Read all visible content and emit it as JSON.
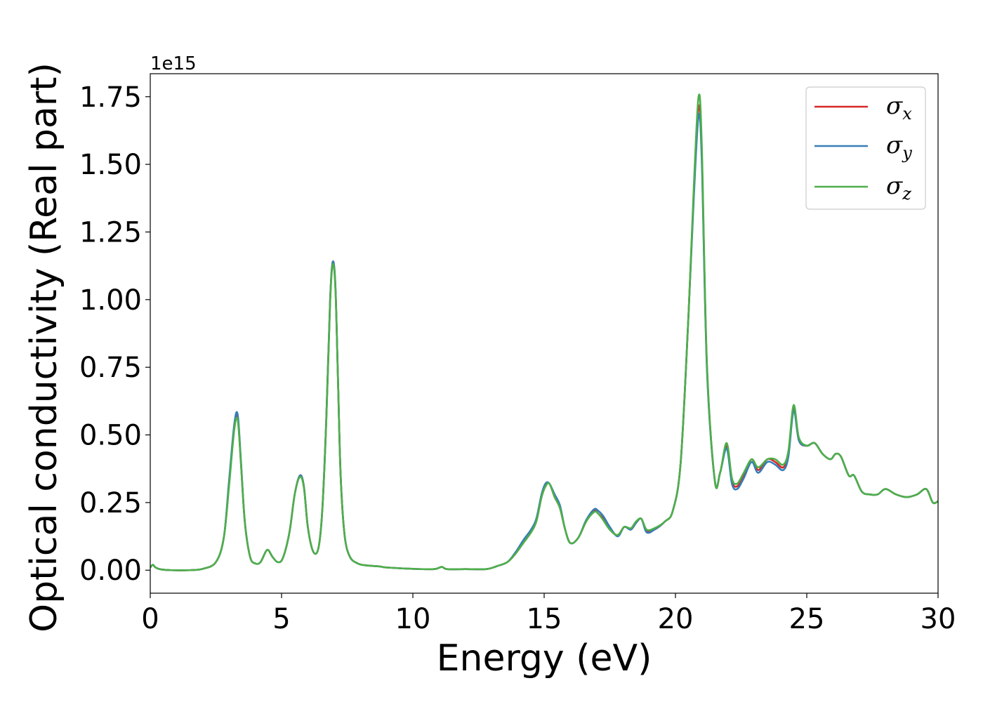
{
  "chart_data": {
    "type": "line",
    "title": "",
    "xlabel": "Energy (eV)",
    "ylabel": "Optical conductivity (Real part)",
    "y_offset_text": "1e15",
    "xlim": [
      0,
      30
    ],
    "ylim": [
      -0.085,
      1.835
    ],
    "x_ticks": [
      0,
      5,
      10,
      15,
      20,
      25,
      30
    ],
    "x_tick_labels": [
      "0",
      "5",
      "10",
      "15",
      "20",
      "25",
      "30"
    ],
    "y_ticks": [
      0.0,
      0.25,
      0.5,
      0.75,
      1.0,
      1.25,
      1.5,
      1.75
    ],
    "y_tick_labels": [
      "0.00",
      "0.25",
      "0.50",
      "0.75",
      "1.00",
      "1.25",
      "1.50",
      "1.75"
    ],
    "grid": false,
    "legend_position": "top-right",
    "series": [
      {
        "name": "σx",
        "base": "σ",
        "sub": "x",
        "color": "#d62728",
        "x": [
          0,
          0.1,
          0.2,
          0.4,
          0.8,
          1.5,
          2.0,
          2.5,
          2.8,
          3.0,
          3.2,
          3.33,
          3.45,
          3.6,
          3.8,
          4.0,
          4.2,
          4.45,
          4.65,
          4.85,
          5.05,
          5.3,
          5.5,
          5.7,
          5.85,
          6.0,
          6.2,
          6.4,
          6.55,
          6.7,
          6.85,
          6.95,
          7.05,
          7.15,
          7.25,
          7.4,
          7.6,
          7.9,
          8.2,
          8.6,
          8.8,
          9.0,
          10.0,
          10.8,
          11.1,
          11.3,
          12.0,
          12.8,
          13.2,
          13.6,
          13.9,
          14.2,
          14.5,
          14.7,
          14.9,
          15.05,
          15.2,
          15.4,
          15.6,
          15.8,
          16.0,
          16.3,
          16.6,
          16.9,
          17.05,
          17.25,
          17.5,
          17.8,
          18.05,
          18.3,
          18.5,
          18.7,
          18.9,
          19.2,
          19.6,
          19.9,
          20.2,
          20.5,
          20.7,
          20.88,
          21.0,
          21.2,
          21.5,
          21.7,
          21.95,
          22.15,
          22.35,
          22.6,
          22.9,
          23.15,
          23.5,
          23.8,
          24.1,
          24.3,
          24.5,
          24.7,
          25.0,
          25.3,
          25.6,
          25.9,
          26.1,
          26.3,
          26.6,
          26.8,
          27.1,
          27.4,
          27.7,
          28.0,
          28.4,
          28.8,
          29.2,
          29.55,
          29.8,
          30.0
        ],
        "y": [
          0.01,
          0.02,
          0.01,
          0.003,
          0.0,
          0.0,
          0.005,
          0.03,
          0.12,
          0.32,
          0.53,
          0.565,
          0.4,
          0.18,
          0.05,
          0.025,
          0.03,
          0.075,
          0.05,
          0.03,
          0.045,
          0.14,
          0.28,
          0.35,
          0.31,
          0.16,
          0.07,
          0.08,
          0.22,
          0.55,
          1.0,
          1.14,
          1.05,
          0.7,
          0.35,
          0.13,
          0.05,
          0.025,
          0.018,
          0.015,
          0.013,
          0.01,
          0.005,
          0.004,
          0.012,
          0.004,
          0.004,
          0.004,
          0.015,
          0.03,
          0.06,
          0.1,
          0.14,
          0.18,
          0.27,
          0.31,
          0.32,
          0.27,
          0.23,
          0.15,
          0.1,
          0.12,
          0.18,
          0.22,
          0.21,
          0.19,
          0.15,
          0.13,
          0.16,
          0.15,
          0.175,
          0.19,
          0.145,
          0.15,
          0.18,
          0.22,
          0.4,
          0.95,
          1.4,
          1.71,
          1.55,
          0.75,
          0.33,
          0.36,
          0.46,
          0.33,
          0.31,
          0.35,
          0.41,
          0.37,
          0.41,
          0.4,
          0.38,
          0.43,
          0.6,
          0.48,
          0.46,
          0.47,
          0.43,
          0.41,
          0.43,
          0.42,
          0.35,
          0.35,
          0.29,
          0.28,
          0.28,
          0.3,
          0.28,
          0.27,
          0.28,
          0.3,
          0.25,
          0.255
        ]
      },
      {
        "name": "σy",
        "base": "σ",
        "sub": "y",
        "color": "#377eb8",
        "x": [
          0,
          0.1,
          0.2,
          0.4,
          0.8,
          1.5,
          2.0,
          2.5,
          2.8,
          3.0,
          3.2,
          3.33,
          3.45,
          3.6,
          3.8,
          4.0,
          4.2,
          4.45,
          4.65,
          4.85,
          5.05,
          5.3,
          5.5,
          5.7,
          5.85,
          6.0,
          6.2,
          6.4,
          6.55,
          6.7,
          6.85,
          6.95,
          7.05,
          7.15,
          7.25,
          7.4,
          7.6,
          7.9,
          8.2,
          8.6,
          8.8,
          9.0,
          10.0,
          10.8,
          11.1,
          11.3,
          12.0,
          12.8,
          13.2,
          13.6,
          13.9,
          14.2,
          14.5,
          14.7,
          14.9,
          15.05,
          15.2,
          15.4,
          15.6,
          15.8,
          16.0,
          16.3,
          16.6,
          16.9,
          17.05,
          17.25,
          17.5,
          17.8,
          18.05,
          18.3,
          18.5,
          18.7,
          18.9,
          19.2,
          19.6,
          19.9,
          20.2,
          20.5,
          20.7,
          20.88,
          21.0,
          21.2,
          21.5,
          21.7,
          21.95,
          22.15,
          22.35,
          22.6,
          22.9,
          23.15,
          23.5,
          23.8,
          24.1,
          24.3,
          24.5,
          24.7,
          25.0,
          25.3,
          25.6,
          25.9,
          26.1,
          26.3,
          26.6,
          26.8,
          27.1,
          27.4,
          27.7,
          28.0,
          28.4,
          28.8,
          29.2,
          29.55,
          29.8,
          30.0
        ],
        "y": [
          0.01,
          0.02,
          0.01,
          0.003,
          0.0,
          0.0,
          0.005,
          0.03,
          0.12,
          0.33,
          0.54,
          0.575,
          0.41,
          0.18,
          0.05,
          0.025,
          0.03,
          0.075,
          0.05,
          0.03,
          0.045,
          0.14,
          0.28,
          0.35,
          0.31,
          0.16,
          0.07,
          0.08,
          0.22,
          0.55,
          1.0,
          1.14,
          1.05,
          0.7,
          0.35,
          0.13,
          0.05,
          0.025,
          0.018,
          0.015,
          0.013,
          0.01,
          0.005,
          0.004,
          0.012,
          0.004,
          0.004,
          0.004,
          0.015,
          0.03,
          0.065,
          0.11,
          0.15,
          0.19,
          0.28,
          0.32,
          0.32,
          0.28,
          0.24,
          0.15,
          0.1,
          0.12,
          0.185,
          0.225,
          0.22,
          0.2,
          0.16,
          0.125,
          0.16,
          0.15,
          0.175,
          0.19,
          0.14,
          0.15,
          0.18,
          0.22,
          0.4,
          0.95,
          1.38,
          1.68,
          1.52,
          0.74,
          0.33,
          0.36,
          0.45,
          0.32,
          0.3,
          0.34,
          0.4,
          0.36,
          0.4,
          0.39,
          0.37,
          0.42,
          0.59,
          0.48,
          0.46,
          0.47,
          0.43,
          0.41,
          0.43,
          0.42,
          0.35,
          0.35,
          0.29,
          0.28,
          0.28,
          0.3,
          0.28,
          0.27,
          0.28,
          0.3,
          0.25,
          0.255
        ]
      },
      {
        "name": "σz",
        "base": "σ",
        "sub": "z",
        "color": "#4daf4a",
        "x": [
          0,
          0.1,
          0.2,
          0.4,
          0.8,
          1.5,
          2.0,
          2.5,
          2.8,
          3.0,
          3.2,
          3.33,
          3.45,
          3.6,
          3.8,
          4.0,
          4.2,
          4.45,
          4.65,
          4.85,
          5.05,
          5.3,
          5.5,
          5.7,
          5.85,
          6.0,
          6.2,
          6.4,
          6.55,
          6.7,
          6.85,
          6.95,
          7.05,
          7.15,
          7.25,
          7.4,
          7.6,
          7.9,
          8.2,
          8.6,
          8.8,
          9.0,
          10.0,
          10.8,
          11.1,
          11.3,
          12.0,
          12.8,
          13.2,
          13.6,
          13.9,
          14.2,
          14.5,
          14.7,
          14.9,
          15.05,
          15.2,
          15.4,
          15.6,
          15.8,
          16.0,
          16.3,
          16.6,
          16.9,
          17.05,
          17.25,
          17.5,
          17.8,
          18.05,
          18.3,
          18.5,
          18.7,
          18.9,
          19.2,
          19.6,
          19.9,
          20.2,
          20.5,
          20.7,
          20.88,
          21.0,
          21.2,
          21.5,
          21.7,
          21.95,
          22.15,
          22.35,
          22.6,
          22.9,
          23.15,
          23.5,
          23.8,
          24.1,
          24.3,
          24.5,
          24.7,
          25.0,
          25.3,
          25.6,
          25.9,
          26.1,
          26.3,
          26.6,
          26.8,
          27.1,
          27.4,
          27.7,
          28.0,
          28.4,
          28.8,
          29.2,
          29.55,
          29.8,
          30.0
        ],
        "y": [
          0.01,
          0.02,
          0.01,
          0.003,
          0.0,
          0.0,
          0.005,
          0.03,
          0.12,
          0.31,
          0.52,
          0.555,
          0.4,
          0.18,
          0.05,
          0.025,
          0.03,
          0.075,
          0.05,
          0.03,
          0.045,
          0.14,
          0.28,
          0.345,
          0.305,
          0.16,
          0.07,
          0.08,
          0.22,
          0.54,
          0.99,
          1.13,
          1.04,
          0.7,
          0.35,
          0.13,
          0.05,
          0.025,
          0.018,
          0.015,
          0.013,
          0.01,
          0.005,
          0.004,
          0.012,
          0.004,
          0.004,
          0.004,
          0.015,
          0.03,
          0.06,
          0.1,
          0.14,
          0.18,
          0.27,
          0.31,
          0.32,
          0.27,
          0.23,
          0.15,
          0.1,
          0.12,
          0.18,
          0.215,
          0.21,
          0.185,
          0.15,
          0.13,
          0.16,
          0.155,
          0.18,
          0.19,
          0.15,
          0.155,
          0.18,
          0.22,
          0.4,
          0.95,
          1.42,
          1.75,
          1.58,
          0.76,
          0.33,
          0.36,
          0.47,
          0.34,
          0.32,
          0.36,
          0.41,
          0.38,
          0.41,
          0.41,
          0.39,
          0.44,
          0.61,
          0.49,
          0.46,
          0.47,
          0.43,
          0.41,
          0.43,
          0.42,
          0.35,
          0.35,
          0.29,
          0.28,
          0.28,
          0.3,
          0.28,
          0.27,
          0.28,
          0.3,
          0.25,
          0.255
        ]
      }
    ]
  }
}
